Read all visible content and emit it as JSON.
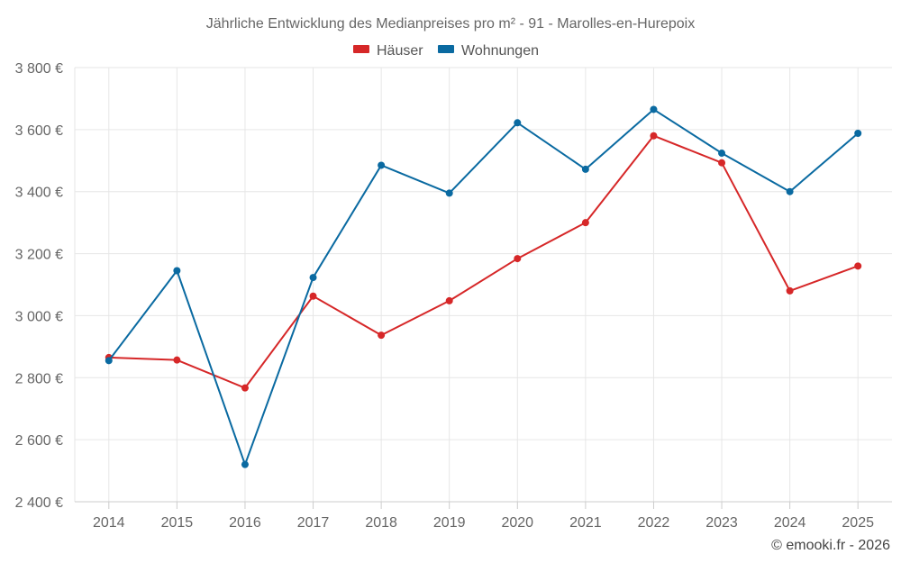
{
  "chart_data": {
    "type": "line",
    "title": "Jährliche Entwicklung des Medianpreises pro m² - 91 - Marolles-en-Hurepoix",
    "categories": [
      "2014",
      "2015",
      "2016",
      "2017",
      "2018",
      "2019",
      "2020",
      "2021",
      "2022",
      "2023",
      "2024",
      "2025"
    ],
    "series": [
      {
        "name": "Häuser",
        "color": "#d62728",
        "values": [
          2865,
          2857,
          2767,
          3063,
          2937,
          3048,
          3184,
          3300,
          3580,
          3493,
          3080,
          3160
        ]
      },
      {
        "name": "Wohnungen",
        "color": "#0a6aa1",
        "values": [
          2855,
          3145,
          2520,
          3123,
          3485,
          3395,
          3622,
          3472,
          3665,
          3524,
          3400,
          3588
        ]
      }
    ],
    "ylim": [
      2400,
      3800
    ],
    "yticks": [
      2400,
      2600,
      2800,
      3000,
      3200,
      3400,
      3600,
      3800
    ],
    "ytick_labels": [
      "2 400 €",
      "2 600 €",
      "2 800 €",
      "3 000 €",
      "3 200 €",
      "3 400 €",
      "3 600 €",
      "3 800 €"
    ],
    "xlabel": "",
    "ylabel": "",
    "grid": true,
    "legend_position": "top-center"
  },
  "credit": "© emooki.fr - 2026"
}
